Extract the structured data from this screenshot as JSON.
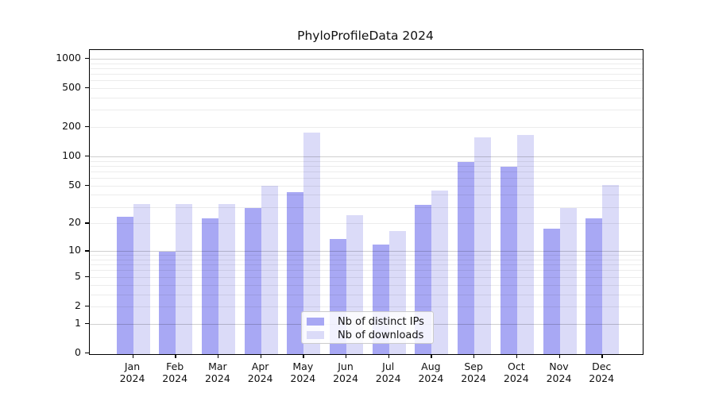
{
  "title": "PhyloProfileData 2024",
  "legend": {
    "items": [
      {
        "label": "Nb of distinct IPs",
        "color": "#a8a8f4"
      },
      {
        "label": "Nb of downloads",
        "color": "#dbdbf8"
      }
    ]
  },
  "chart_data": {
    "type": "bar",
    "title": "PhyloProfileData 2024",
    "categories": [
      "Jan 2024",
      "Feb 2024",
      "Mar 2024",
      "Apr 2024",
      "May 2024",
      "Jun 2024",
      "Jul 2024",
      "Aug 2024",
      "Sep 2024",
      "Oct 2024",
      "Nov 2024",
      "Dec 2024"
    ],
    "series": [
      {
        "name": "Nb of distinct IPs",
        "color": "#a8a8f4",
        "values": [
          24,
          10,
          23,
          30,
          44,
          14,
          12,
          32,
          90,
          80,
          18,
          23
        ]
      },
      {
        "name": "Nb of downloads",
        "color": "#dbdbf8",
        "values": [
          33,
          33,
          33,
          51,
          180,
          25,
          17,
          45,
          160,
          170,
          30,
          52
        ]
      }
    ],
    "xlabel": "",
    "ylabel": "",
    "y_scale": "log10(1+x)",
    "y_ticks": [
      0,
      1,
      2,
      5,
      10,
      20,
      50,
      100,
      200,
      500,
      1000
    ],
    "ylim": [
      0,
      1230
    ],
    "grid": "horizontal, minor at 2-9 per decade, major at powers of 10",
    "legend_position": "bottom-center"
  }
}
